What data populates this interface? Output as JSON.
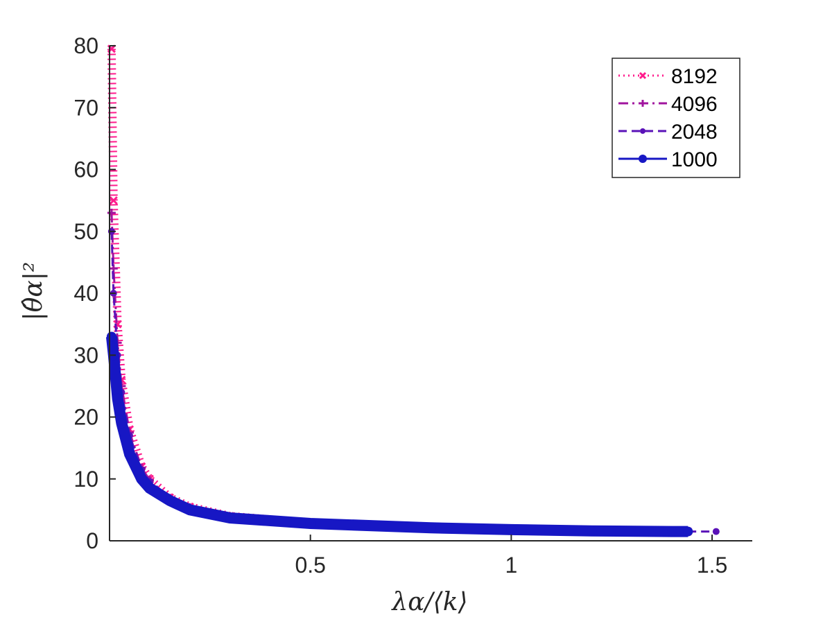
{
  "chart_data": {
    "type": "line",
    "title": "",
    "xlabel": "λα/⟨k⟩",
    "ylabel": "|θ̂α|²",
    "xlim": [
      0,
      1.6
    ],
    "ylim": [
      0,
      80
    ],
    "x_ticks": [
      {
        "value": 0.5,
        "label": "0.5"
      },
      {
        "value": 1,
        "label": "1"
      },
      {
        "value": 1.5,
        "label": "1.5"
      }
    ],
    "y_ticks": [
      {
        "value": 0,
        "label": "0"
      },
      {
        "value": 10,
        "label": "10"
      },
      {
        "value": 20,
        "label": "20"
      },
      {
        "value": 30,
        "label": "30"
      },
      {
        "value": 40,
        "label": "40"
      },
      {
        "value": 50,
        "label": "50"
      },
      {
        "value": 60,
        "label": "60"
      },
      {
        "value": 70,
        "label": "70"
      },
      {
        "value": 80,
        "label": "80"
      }
    ],
    "grid": false,
    "legend_position": "top-right",
    "series": [
      {
        "name": "8192",
        "color": "#ff1b8c",
        "line": "dotted",
        "marker": "x",
        "x": [
          0.005,
          0.01,
          0.02,
          0.03,
          0.05,
          0.08,
          0.1,
          0.15,
          0.2,
          0.3,
          0.5,
          0.8,
          1.0,
          1.2,
          1.4,
          1.44
        ],
        "y": [
          79.5,
          55,
          35,
          26,
          18,
          12,
          10,
          7,
          5.5,
          4.0,
          2.9,
          2.2,
          1.9,
          1.7,
          1.5,
          1.5
        ]
      },
      {
        "name": "4096",
        "color": "#a0149e",
        "line": "dashdot",
        "marker": "+",
        "x": [
          0.005,
          0.01,
          0.02,
          0.03,
          0.05,
          0.08,
          0.1,
          0.15,
          0.2,
          0.3,
          0.5,
          0.8,
          1.0,
          1.2,
          1.4,
          1.44
        ],
        "y": [
          53,
          44,
          32,
          25,
          17.5,
          11.8,
          9.8,
          6.9,
          5.4,
          3.9,
          2.9,
          2.2,
          1.9,
          1.7,
          1.5,
          1.5
        ]
      },
      {
        "name": "2048",
        "color": "#5a12b8",
        "line": "dashed",
        "marker": "dot",
        "x": [
          0.005,
          0.01,
          0.02,
          0.03,
          0.05,
          0.08,
          0.1,
          0.15,
          0.2,
          0.3,
          0.5,
          0.8,
          1.0,
          1.2,
          1.4,
          1.44,
          1.51
        ],
        "y": [
          50,
          40,
          30,
          24,
          17,
          11.5,
          9.6,
          6.8,
          5.3,
          3.9,
          2.9,
          2.2,
          1.9,
          1.7,
          1.5,
          1.5,
          1.5
        ]
      },
      {
        "name": "1000",
        "color": "#1717c4",
        "line": "solid",
        "marker": "dot",
        "x": [
          0.005,
          0.01,
          0.02,
          0.03,
          0.05,
          0.08,
          0.1,
          0.15,
          0.2,
          0.3,
          0.5,
          0.8,
          1.0,
          1.2,
          1.4,
          1.44
        ],
        "y": [
          33,
          30,
          23,
          19,
          14,
          10,
          8.5,
          6.5,
          5.0,
          3.7,
          2.8,
          2.1,
          1.8,
          1.6,
          1.5,
          1.5
        ]
      }
    ]
  }
}
